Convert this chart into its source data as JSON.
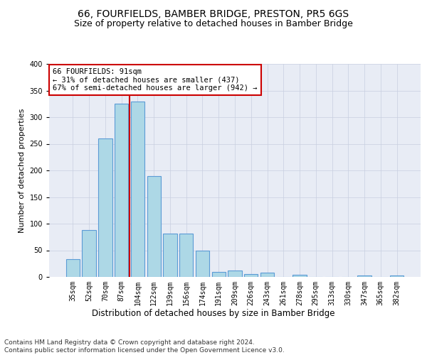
{
  "title": "66, FOURFIELDS, BAMBER BRIDGE, PRESTON, PR5 6GS",
  "subtitle": "Size of property relative to detached houses in Bamber Bridge",
  "xlabel": "Distribution of detached houses by size in Bamber Bridge",
  "ylabel": "Number of detached properties",
  "bar_labels": [
    "35sqm",
    "52sqm",
    "70sqm",
    "87sqm",
    "104sqm",
    "122sqm",
    "139sqm",
    "156sqm",
    "174sqm",
    "191sqm",
    "209sqm",
    "226sqm",
    "243sqm",
    "261sqm",
    "278sqm",
    "295sqm",
    "313sqm",
    "330sqm",
    "347sqm",
    "365sqm",
    "382sqm"
  ],
  "bar_values": [
    33,
    88,
    260,
    325,
    330,
    190,
    82,
    82,
    50,
    10,
    12,
    6,
    8,
    0,
    4,
    0,
    0,
    0,
    3,
    0,
    3
  ],
  "bar_color": "#add8e6",
  "bar_edgecolor": "#5b9bd5",
  "bar_linewidth": 0.8,
  "vline_pos": 3.5,
  "vline_color": "#cc0000",
  "vline_linewidth": 1.5,
  "annotation_text": "66 FOURFIELDS: 91sqm\n← 31% of detached houses are smaller (437)\n67% of semi-detached houses are larger (942) →",
  "annotation_box_edgecolor": "#cc0000",
  "annotation_box_facecolor": "white",
  "annotation_fontsize": 7.5,
  "ylim": [
    0,
    400
  ],
  "yticks": [
    0,
    50,
    100,
    150,
    200,
    250,
    300,
    350,
    400
  ],
  "grid_color": "#c8cfe0",
  "background_color": "#e8ecf5",
  "footer_text": "Contains HM Land Registry data © Crown copyright and database right 2024.\nContains public sector information licensed under the Open Government Licence v3.0.",
  "title_fontsize": 10,
  "subtitle_fontsize": 9,
  "xlabel_fontsize": 8.5,
  "ylabel_fontsize": 8,
  "tick_fontsize": 7,
  "footer_fontsize": 6.5
}
